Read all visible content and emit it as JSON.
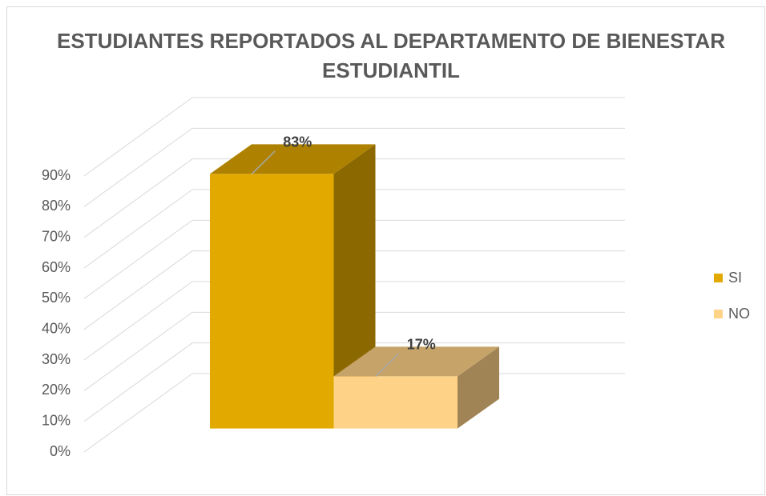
{
  "chart_data": {
    "type": "bar3d",
    "title": "ESTUDIANTES REPORTADOS AL DEPARTAMENTO DE BIENESTAR ESTUDIANTIL",
    "categories": [
      "SI",
      "NO"
    ],
    "values": [
      83,
      17
    ],
    "value_labels": [
      "83%",
      "17%"
    ],
    "colors": [
      "#e2aa00",
      "#ffd387"
    ],
    "ylim": [
      0,
      90
    ],
    "yticks": [
      {
        "value": 0,
        "label": "0%"
      },
      {
        "value": 10,
        "label": "10%"
      },
      {
        "value": 20,
        "label": "20%"
      },
      {
        "value": 30,
        "label": "30%"
      },
      {
        "value": 40,
        "label": "40%"
      },
      {
        "value": 50,
        "label": "50%"
      },
      {
        "value": 60,
        "label": "60%"
      },
      {
        "value": 70,
        "label": "70%"
      },
      {
        "value": 80,
        "label": "80%"
      },
      {
        "value": 90,
        "label": "90%"
      }
    ],
    "grid": true,
    "legend": "right"
  }
}
